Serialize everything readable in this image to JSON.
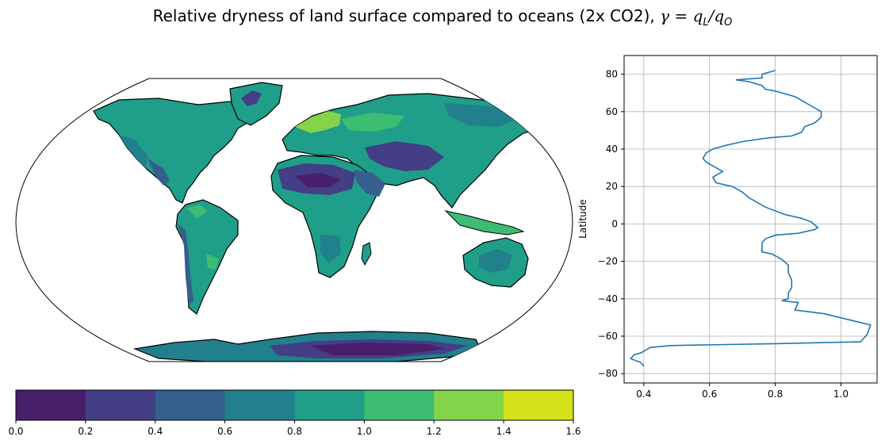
{
  "title": {
    "prefix": "Relative dryness of land surface compared to oceans (2x CO2), ",
    "gamma": "γ",
    "eq": " = q",
    "subL": "L",
    "slash": "/q",
    "subO": "O"
  },
  "chart_data": [
    {
      "type": "heatmap",
      "description_type": "map",
      "colormap": "viridis",
      "colorbar": {
        "levels": [
          0.0,
          0.2,
          0.4,
          0.6,
          0.8,
          1.0,
          1.2,
          1.4,
          1.6
        ],
        "tick_labels": [
          "0.0",
          "0.2",
          "0.4",
          "0.6",
          "0.8",
          "1.0",
          "1.2",
          "1.4",
          "1.6"
        ],
        "colors": [
          "#481f6b",
          "#433e85",
          "#35608d",
          "#21808c",
          "#1f9e89",
          "#3dbc74",
          "#84d44b",
          "#d5e21a"
        ]
      }
    },
    {
      "type": "line",
      "xlabel": "",
      "ylabel": "Latitude",
      "xlim": [
        0.34,
        1.11
      ],
      "ylim": [
        -85,
        90
      ],
      "xticks": [
        0.4,
        0.6,
        0.8,
        1.0
      ],
      "xtick_labels": [
        "0.4",
        "0.6",
        "0.8",
        "1.0"
      ],
      "yticks": [
        80,
        60,
        40,
        20,
        0,
        -20,
        -40,
        -60,
        -80
      ],
      "ytick_labels": [
        "80",
        "60",
        "40",
        "20",
        "0",
        "−20",
        "−40",
        "−60",
        "−80"
      ],
      "grid": true,
      "line_color": "#1f77b4",
      "series": [
        {
          "x": [
            0.8,
            0.76,
            0.76,
            0.68,
            0.72,
            0.76,
            0.77,
            0.8,
            0.86,
            0.89,
            0.92,
            0.94,
            0.94,
            0.92,
            0.89,
            0.88,
            0.85,
            0.78,
            0.7,
            0.65,
            0.61,
            0.59,
            0.58,
            0.59,
            0.61,
            0.64,
            0.61,
            0.62,
            0.67,
            0.7,
            0.72,
            0.74,
            0.77,
            0.83,
            0.88,
            0.91,
            0.93,
            0.92,
            0.87,
            0.8,
            0.77,
            0.76,
            0.76,
            0.79,
            0.82,
            0.84,
            0.84,
            0.85,
            0.85,
            0.84,
            0.84,
            0.82,
            0.87,
            0.86,
            0.95,
            1.02,
            1.09,
            1.08,
            1.06,
            0.8,
            0.48,
            0.42,
            0.4,
            0.39,
            0.37,
            0.36,
            0.39,
            0.4
          ],
          "y": [
            82,
            80,
            78,
            77,
            76,
            74,
            72,
            71,
            68,
            65,
            62,
            60,
            57,
            54,
            52,
            49,
            47,
            46,
            44,
            42,
            40,
            38,
            35,
            33,
            31,
            28,
            25,
            22,
            20,
            17,
            14,
            12,
            9,
            5,
            3,
            1,
            -2,
            -3,
            -5,
            -6,
            -8,
            -10,
            -15,
            -16,
            -19,
            -22,
            -26,
            -30,
            -34,
            -37,
            -40,
            -41,
            -42,
            -46,
            -48,
            -51,
            -54,
            -59,
            -63,
            -64,
            -65,
            -66,
            -68,
            -69,
            -70,
            -72,
            -74,
            -76
          ]
        }
      ]
    }
  ]
}
